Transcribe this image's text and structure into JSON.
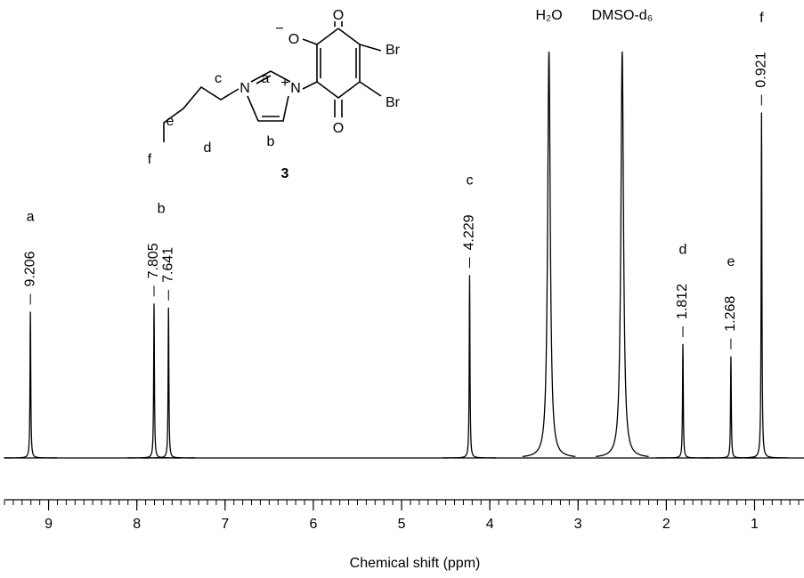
{
  "chart_data": {
    "type": "nmr",
    "x_label": "Chemical shift (ppm)",
    "xlim": [
      9.5,
      0.44
    ],
    "xticks": [
      9,
      8,
      7,
      6,
      5,
      4,
      3,
      2,
      1
    ],
    "minor_tick_step": 0.1,
    "ylim": [
      0,
      100
    ],
    "color": "#000000",
    "signals": [
      {
        "label": "a",
        "peaks": [
          {
            "shift": 9.206,
            "intensity": 36
          }
        ]
      },
      {
        "label": "b",
        "peaks": [
          {
            "shift": 7.805,
            "intensity": 38
          },
          {
            "shift": 7.641,
            "intensity": 37
          }
        ]
      },
      {
        "label": "c",
        "peaks": [
          {
            "shift": 4.229,
            "intensity": 45
          }
        ]
      },
      {
        "label": "d",
        "peaks": [
          {
            "shift": 1.812,
            "intensity": 28
          }
        ]
      },
      {
        "label": "e",
        "peaks": [
          {
            "shift": 1.268,
            "intensity": 25
          }
        ]
      },
      {
        "label": "f",
        "peaks": [
          {
            "shift": 0.921,
            "intensity": 85
          }
        ]
      }
    ],
    "solvent_peaks": [
      {
        "label": "H₂O",
        "shift": 3.33,
        "intensity": 100
      },
      {
        "label": "DMSO-d₆",
        "shift": 2.5,
        "intensity": 100
      }
    ]
  },
  "structure": {
    "compound": "3",
    "oxygen_top": "O",
    "oxygen_bottom": "O",
    "oxygen_anion": "O",
    "charge_minus": "−",
    "bromine_1": "Br",
    "bromine_2": "Br",
    "nitrogen_1": "N",
    "nitrogen_3": "N",
    "charge_plus": "+",
    "positions": [
      "a",
      "b",
      "c",
      "d",
      "e",
      "f"
    ]
  }
}
